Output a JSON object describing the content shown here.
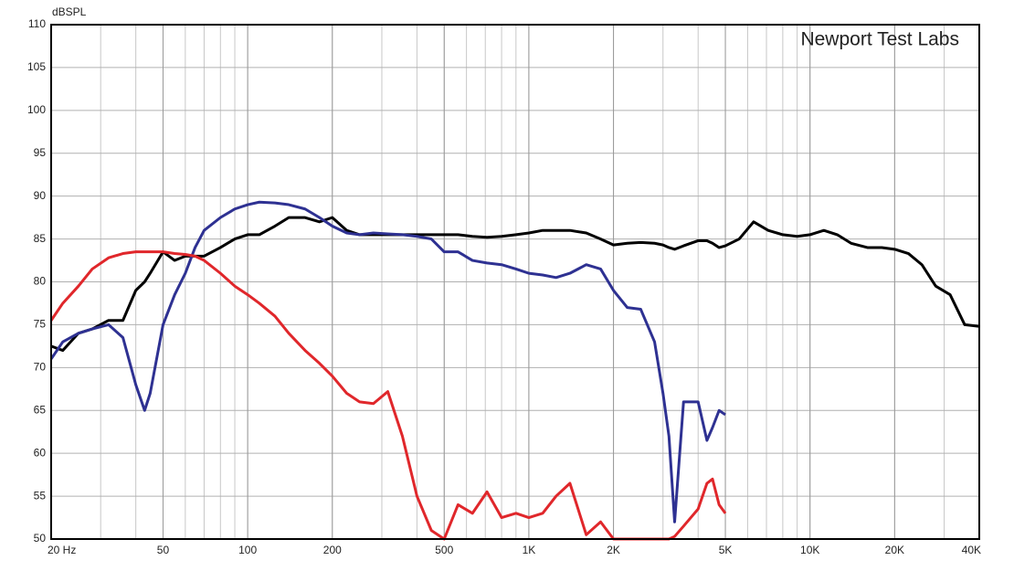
{
  "chart_data": {
    "type": "line",
    "y_label": "dBSPL",
    "annotation": "Newport Test Labs",
    "xscale": "log",
    "grid": true,
    "xlim": [
      20,
      40000
    ],
    "ylim": [
      50,
      110
    ],
    "xticks": [
      {
        "value": 20,
        "label": "20 Hz"
      },
      50,
      100,
      200,
      500,
      {
        "value": 1000,
        "label": "1K"
      },
      {
        "value": 2000,
        "label": "2K"
      },
      {
        "value": 5000,
        "label": "5K"
      },
      {
        "value": 10000,
        "label": "10K"
      },
      {
        "value": 20000,
        "label": "20K"
      },
      {
        "value": 40000,
        "label": "40K"
      }
    ],
    "yticks": [
      50,
      55,
      60,
      65,
      70,
      75,
      80,
      85,
      90,
      95,
      100,
      105,
      110
    ],
    "x": [
      20,
      22,
      25,
      28,
      32,
      36,
      40,
      43,
      45,
      50,
      55,
      60,
      65,
      70,
      80,
      90,
      100,
      110,
      125,
      140,
      160,
      180,
      200,
      225,
      250,
      280,
      315,
      355,
      400,
      450,
      500,
      560,
      630,
      710,
      800,
      900,
      1000,
      1120,
      1250,
      1400,
      1600,
      1800,
      2000,
      2240,
      2500,
      2800,
      3000,
      3150,
      3300,
      3550,
      4000,
      4300,
      4500,
      4750,
      5000,
      5600,
      6300,
      7100,
      8000,
      9000,
      10000,
      11200,
      12500,
      14000,
      16000,
      18000,
      20000,
      22400,
      25000,
      28000,
      31500,
      35500,
      40000
    ],
    "series": [
      {
        "color": "#000000",
        "values": [
          72.5,
          72,
          74,
          74.5,
          75.5,
          75.5,
          79,
          80,
          81,
          83.5,
          82.5,
          83,
          83,
          83,
          84,
          85,
          85.5,
          85.5,
          86.5,
          87.5,
          87.5,
          87,
          87.5,
          86,
          85.5,
          85.5,
          85.5,
          85.5,
          85.5,
          85.5,
          85.5,
          85.5,
          85.3,
          85.2,
          85.3,
          85.5,
          85.7,
          86,
          86,
          86,
          85.7,
          85,
          84.3,
          84.5,
          84.6,
          84.5,
          84.3,
          84,
          83.8,
          84.2,
          84.8,
          84.8,
          84.5,
          84,
          84.2,
          85,
          87,
          86,
          85.5,
          85.3,
          85.5,
          86,
          85.5,
          84.5,
          84,
          84,
          83.8,
          83.3,
          82,
          79.5,
          78.5,
          75,
          74.8
        ]
      },
      {
        "color": "#2e3192",
        "values": [
          71,
          73,
          74,
          74.5,
          75,
          73.5,
          68,
          65,
          67,
          75,
          78.5,
          81,
          84,
          86,
          87.5,
          88.5,
          89,
          89.3,
          89.2,
          89,
          88.5,
          87.5,
          86.5,
          85.7,
          85.5,
          85.7,
          85.6,
          85.5,
          85.3,
          85,
          83.5,
          83.5,
          82.5,
          82.2,
          82,
          81.5,
          81,
          80.8,
          80.5,
          81,
          82,
          81.5,
          79,
          77,
          76.8,
          73,
          67,
          62,
          52,
          66,
          66,
          61.5,
          63,
          65,
          64.5,
          null,
          null,
          null,
          null,
          null,
          null,
          null,
          null,
          null,
          null,
          null,
          null,
          null,
          null,
          null,
          null,
          null,
          null
        ]
      },
      {
        "color": "#e0272b",
        "values": [
          75.5,
          77.5,
          79.5,
          81.5,
          82.8,
          83.3,
          83.5,
          83.5,
          83.5,
          83.5,
          83.3,
          83.2,
          83,
          82.5,
          81,
          79.5,
          78.5,
          77.5,
          76,
          74,
          72,
          70.5,
          69,
          67,
          66,
          65.8,
          67.2,
          62,
          55,
          51,
          50,
          54,
          53,
          55.5,
          52.5,
          53,
          52.5,
          53,
          55,
          56.5,
          50.5,
          52,
          50,
          50,
          50,
          50,
          50,
          50,
          50.3,
          51.5,
          53.5,
          56.5,
          57,
          54,
          53,
          null,
          null,
          null,
          null,
          null,
          null,
          null,
          null,
          null,
          null,
          null,
          null,
          null,
          null,
          null,
          null,
          null,
          null
        ]
      }
    ]
  }
}
